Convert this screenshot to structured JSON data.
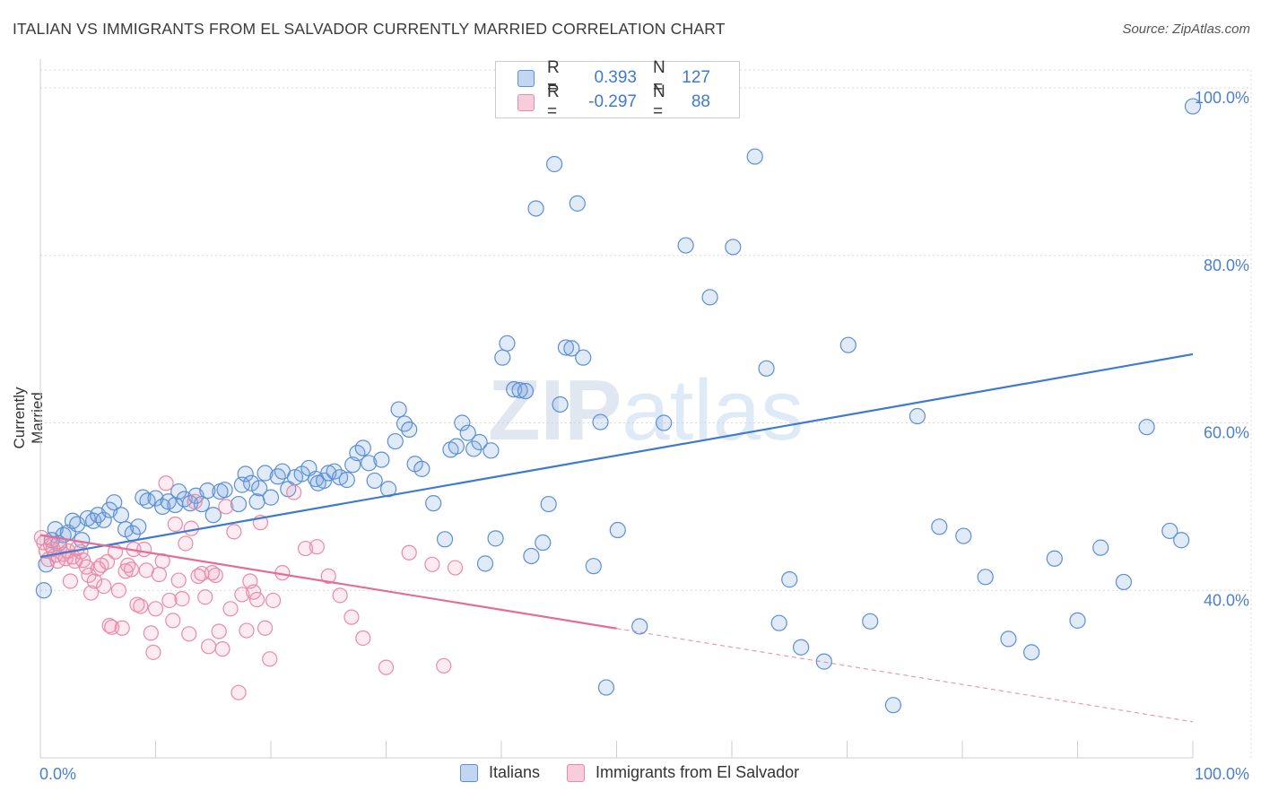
{
  "title": "ITALIAN VS IMMIGRANTS FROM EL SALVADOR CURRENTLY MARRIED CORRELATION CHART",
  "source": "Source: ZipAtlas.com",
  "watermark": "ZIPatlas",
  "colors": {
    "blue": "#5b8fd6",
    "blue_fill": "rgba(120,165,225,0.22)",
    "blue_line": "#3d7ad0",
    "pink": "#e98aa8",
    "pink_fill": "rgba(240,150,180,0.18)",
    "pink_line": "#e36d98",
    "tick_label": "#4a7fd0",
    "grid": "#d8d8d8"
  },
  "legend": {
    "rows": [
      {
        "r_label": "R =",
        "r_value": "0.393",
        "n_label": "N =",
        "n_value": "127"
      },
      {
        "r_label": "R =",
        "r_value": "-0.297",
        "n_label": "N =",
        "n_value": "88"
      }
    ]
  },
  "bottom_legend": [
    "Italians",
    "Immigrants from El Salvador"
  ],
  "chart_data": {
    "type": "scatter",
    "title": "ITALIAN VS IMMIGRANTS FROM EL SALVADOR CURRENTLY MARRIED CORRELATION CHART",
    "xlabel": "",
    "ylabel": "Currently Married",
    "xlim": [
      0,
      100
    ],
    "ylim": [
      20,
      103
    ],
    "x_tick_labels": [
      "0.0%",
      "100.0%"
    ],
    "y_ticks": [
      40,
      60,
      80,
      100
    ],
    "y_tick_labels": [
      "40.0%",
      "60.0%",
      "80.0%",
      "100.0%"
    ],
    "grid": true,
    "series": [
      {
        "name": "Italians",
        "trend": {
          "x": [
            0,
            100
          ],
          "y": [
            44.0,
            68.2
          ],
          "dashed_from": null
        },
        "points": [
          [
            0.3,
            40.0
          ],
          [
            0.5,
            43.1
          ],
          [
            1.0,
            46.0
          ],
          [
            1.3,
            47.3
          ],
          [
            1.6,
            45.6
          ],
          [
            2.0,
            46.6
          ],
          [
            2.4,
            46.9
          ],
          [
            2.8,
            48.3
          ],
          [
            3.2,
            47.9
          ],
          [
            3.6,
            46.0
          ],
          [
            4.1,
            48.6
          ],
          [
            4.6,
            48.3
          ],
          [
            5.0,
            49.0
          ],
          [
            5.5,
            48.4
          ],
          [
            6.0,
            49.6
          ],
          [
            6.4,
            50.5
          ],
          [
            7.0,
            49.0
          ],
          [
            7.4,
            47.3
          ],
          [
            8.0,
            46.8
          ],
          [
            8.5,
            47.6
          ],
          [
            8.9,
            51.1
          ],
          [
            9.3,
            50.7
          ],
          [
            10.0,
            51.0
          ],
          [
            10.6,
            50.0
          ],
          [
            11.1,
            50.6
          ],
          [
            11.7,
            50.2
          ],
          [
            12.0,
            51.8
          ],
          [
            12.5,
            50.9
          ],
          [
            13.0,
            50.4
          ],
          [
            13.5,
            51.3
          ],
          [
            14.0,
            50.3
          ],
          [
            14.5,
            51.9
          ],
          [
            15.0,
            49.0
          ],
          [
            15.6,
            51.8
          ],
          [
            16.0,
            52.0
          ],
          [
            17.2,
            50.3
          ],
          [
            17.5,
            52.6
          ],
          [
            17.8,
            53.9
          ],
          [
            18.3,
            52.8
          ],
          [
            18.8,
            50.6
          ],
          [
            19.0,
            52.2
          ],
          [
            19.5,
            54.0
          ],
          [
            20.0,
            51.1
          ],
          [
            20.6,
            53.6
          ],
          [
            21.0,
            54.2
          ],
          [
            21.5,
            52.1
          ],
          [
            22.1,
            53.5
          ],
          [
            22.7,
            53.9
          ],
          [
            23.3,
            54.6
          ],
          [
            23.9,
            53.3
          ],
          [
            24.1,
            52.8
          ],
          [
            24.6,
            53.1
          ],
          [
            25.0,
            54.0
          ],
          [
            25.5,
            54.2
          ],
          [
            26.0,
            53.5
          ],
          [
            26.6,
            53.2
          ],
          [
            27.1,
            55.0
          ],
          [
            27.5,
            56.4
          ],
          [
            28.0,
            57.0
          ],
          [
            28.5,
            55.2
          ],
          [
            29.0,
            53.1
          ],
          [
            29.6,
            55.6
          ],
          [
            30.2,
            52.1
          ],
          [
            30.8,
            57.8
          ],
          [
            31.1,
            61.6
          ],
          [
            31.6,
            59.9
          ],
          [
            32.0,
            59.2
          ],
          [
            32.5,
            55.1
          ],
          [
            33.1,
            54.5
          ],
          [
            34.1,
            50.4
          ],
          [
            35.1,
            46.1
          ],
          [
            35.6,
            56.8
          ],
          [
            36.1,
            57.2
          ],
          [
            36.6,
            60.0
          ],
          [
            37.1,
            58.8
          ],
          [
            37.6,
            56.9
          ],
          [
            38.1,
            57.7
          ],
          [
            38.6,
            43.2
          ],
          [
            39.1,
            56.7
          ],
          [
            39.5,
            46.2
          ],
          [
            40.1,
            67.8
          ],
          [
            40.5,
            69.5
          ],
          [
            41.1,
            64.0
          ],
          [
            41.6,
            63.9
          ],
          [
            42.1,
            63.8
          ],
          [
            42.6,
            44.1
          ],
          [
            43.0,
            85.6
          ],
          [
            43.6,
            45.7
          ],
          [
            44.1,
            50.3
          ],
          [
            44.6,
            90.9
          ],
          [
            45.1,
            62.2
          ],
          [
            45.6,
            69.0
          ],
          [
            46.1,
            68.9
          ],
          [
            46.6,
            86.2
          ],
          [
            47.1,
            67.8
          ],
          [
            48.0,
            42.9
          ],
          [
            48.6,
            60.1
          ],
          [
            49.1,
            28.4
          ],
          [
            50.1,
            47.2
          ],
          [
            52.0,
            35.7
          ],
          [
            54.1,
            60.0
          ],
          [
            56.0,
            81.2
          ],
          [
            58.1,
            75.0
          ],
          [
            60.1,
            81.0
          ],
          [
            62.0,
            91.8
          ],
          [
            63.0,
            66.5
          ],
          [
            64.1,
            36.1
          ],
          [
            65.0,
            41.3
          ],
          [
            66.0,
            33.2
          ],
          [
            68.0,
            31.5
          ],
          [
            70.1,
            69.3
          ],
          [
            72.0,
            36.3
          ],
          [
            74.0,
            26.3
          ],
          [
            76.1,
            60.8
          ],
          [
            78.0,
            47.6
          ],
          [
            80.1,
            46.5
          ],
          [
            82.0,
            41.6
          ],
          [
            84.0,
            34.2
          ],
          [
            86.0,
            32.6
          ],
          [
            88.0,
            43.8
          ],
          [
            90.0,
            36.4
          ],
          [
            92.0,
            45.1
          ],
          [
            94.0,
            41.0
          ],
          [
            96.0,
            59.5
          ],
          [
            98.0,
            47.1
          ],
          [
            100.0,
            97.8
          ],
          [
            99.0,
            46.0
          ]
        ]
      },
      {
        "name": "Immigrants from El Salvador",
        "trend": {
          "x": [
            0,
            100
          ],
          "y": [
            46.6,
            24.3
          ],
          "dashed_from": 50
        },
        "points": [
          [
            0.1,
            46.3
          ],
          [
            0.3,
            45.7
          ],
          [
            0.5,
            44.7
          ],
          [
            0.7,
            43.7
          ],
          [
            0.9,
            45.4
          ],
          [
            1.1,
            44.9
          ],
          [
            1.3,
            44.2
          ],
          [
            1.5,
            43.5
          ],
          [
            1.7,
            45.1
          ],
          [
            2.0,
            44.3
          ],
          [
            2.2,
            43.8
          ],
          [
            2.4,
            44.7
          ],
          [
            2.6,
            41.1
          ],
          [
            2.8,
            44.0
          ],
          [
            3.0,
            43.5
          ],
          [
            3.2,
            45.0
          ],
          [
            3.5,
            44.6
          ],
          [
            3.7,
            43.6
          ],
          [
            4.0,
            42.8
          ],
          [
            4.2,
            41.8
          ],
          [
            4.4,
            39.7
          ],
          [
            4.7,
            41.1
          ],
          [
            5.0,
            42.6
          ],
          [
            5.3,
            43.0
          ],
          [
            5.5,
            40.5
          ],
          [
            5.8,
            43.4
          ],
          [
            6.0,
            35.8
          ],
          [
            6.2,
            35.6
          ],
          [
            6.5,
            44.6
          ],
          [
            6.8,
            40.0
          ],
          [
            7.1,
            35.5
          ],
          [
            7.4,
            42.3
          ],
          [
            7.6,
            43.0
          ],
          [
            7.9,
            42.5
          ],
          [
            8.1,
            44.9
          ],
          [
            8.4,
            38.3
          ],
          [
            8.7,
            38.1
          ],
          [
            9.0,
            44.9
          ],
          [
            9.2,
            42.4
          ],
          [
            9.6,
            34.9
          ],
          [
            9.8,
            32.6
          ],
          [
            10.0,
            37.8
          ],
          [
            10.3,
            41.9
          ],
          [
            10.6,
            43.5
          ],
          [
            10.9,
            52.8
          ],
          [
            11.2,
            38.8
          ],
          [
            11.5,
            36.4
          ],
          [
            11.7,
            47.9
          ],
          [
            12.0,
            41.2
          ],
          [
            12.3,
            39.0
          ],
          [
            12.6,
            45.6
          ],
          [
            12.9,
            34.8
          ],
          [
            13.1,
            47.4
          ],
          [
            13.4,
            50.6
          ],
          [
            13.7,
            41.7
          ],
          [
            14.0,
            42.0
          ],
          [
            14.3,
            39.2
          ],
          [
            14.6,
            33.3
          ],
          [
            14.9,
            42.1
          ],
          [
            15.2,
            41.8
          ],
          [
            15.5,
            35.1
          ],
          [
            15.8,
            33.0
          ],
          [
            16.1,
            50.0
          ],
          [
            16.5,
            37.8
          ],
          [
            16.8,
            47.0
          ],
          [
            17.2,
            27.8
          ],
          [
            17.5,
            39.5
          ],
          [
            17.9,
            35.2
          ],
          [
            18.2,
            41.1
          ],
          [
            18.5,
            39.8
          ],
          [
            18.8,
            38.9
          ],
          [
            19.1,
            48.1
          ],
          [
            19.5,
            35.5
          ],
          [
            19.9,
            31.8
          ],
          [
            20.2,
            38.8
          ],
          [
            21.0,
            42.1
          ],
          [
            22.0,
            51.7
          ],
          [
            23.0,
            45.0
          ],
          [
            24.0,
            45.2
          ],
          [
            25.0,
            41.7
          ],
          [
            26.0,
            39.4
          ],
          [
            27.0,
            36.8
          ],
          [
            28.0,
            34.3
          ],
          [
            30.0,
            30.8
          ],
          [
            32.0,
            44.5
          ],
          [
            34.0,
            43.1
          ],
          [
            35.0,
            31.0
          ],
          [
            36.0,
            42.7
          ]
        ]
      }
    ]
  }
}
